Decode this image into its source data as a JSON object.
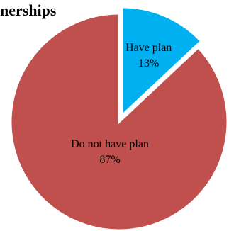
{
  "chart_data": {
    "type": "pie",
    "title": "nerships",
    "categories": [
      "Have plan",
      "Do not have plan"
    ],
    "values": [
      13,
      87
    ],
    "unit": "%",
    "data_labels": [
      "13%",
      "87%"
    ],
    "colors": [
      "#00b0f0",
      "#c0504d"
    ],
    "exploded": [
      "Have plan"
    ],
    "legend": "none",
    "start_angle": "top, clockwise"
  }
}
